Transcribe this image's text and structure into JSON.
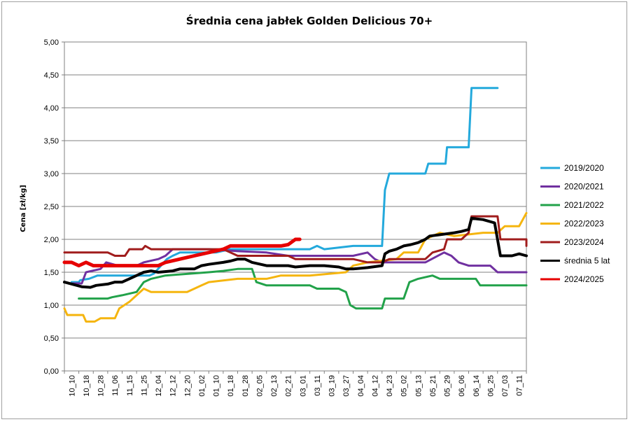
{
  "chart_data": {
    "type": "line",
    "title": "Średnia cena jabłek Golden Delicious 70+",
    "ylabel": "Cena [zł/kg]",
    "xlabel": "",
    "ylim": [
      0,
      5
    ],
    "yticks": [
      "0,00",
      "0,50",
      "1,00",
      "1,50",
      "2,00",
      "2,50",
      "3,00",
      "3,50",
      "4,00",
      "4,50",
      "5,00"
    ],
    "categories": [
      "10_10",
      "10_18",
      "10_28",
      "11_06",
      "11_15",
      "11_25",
      "12_04",
      "12_12",
      "12_20",
      "01_02",
      "01_10",
      "01_18",
      "01_28",
      "02_05",
      "02_13",
      "02_21",
      "03_01",
      "03_11",
      "03_19",
      "03_27",
      "04_04",
      "04_12",
      "04_23",
      "05_02",
      "05_13",
      "05_21",
      "05_29",
      "06_06",
      "06_14",
      "06_25",
      "07_03",
      "07_11"
    ],
    "grid": "horizontal",
    "legend_position": "right",
    "series": [
      {
        "name": "2019/2020",
        "color": "#23a9dc",
        "width": 3,
        "points": [
          [
            0.5,
            1.35
          ],
          [
            1.0,
            1.35
          ],
          [
            1.1,
            1.38
          ],
          [
            1.7,
            1.4
          ],
          [
            2.3,
            1.45
          ],
          [
            5.9,
            1.45
          ],
          [
            6.2,
            1.48
          ],
          [
            7.1,
            1.7
          ],
          [
            7.5,
            1.75
          ],
          [
            8.0,
            1.8
          ],
          [
            10.5,
            1.8
          ],
          [
            11.5,
            1.85
          ],
          [
            15.0,
            1.85
          ],
          [
            17.0,
            1.85
          ],
          [
            17.5,
            1.9
          ],
          [
            18.0,
            1.85
          ],
          [
            20.0,
            1.9
          ],
          [
            22.0,
            1.9
          ],
          [
            22.2,
            2.75
          ],
          [
            22.5,
            3.0
          ],
          [
            25.0,
            3.0
          ],
          [
            25.2,
            3.15
          ],
          [
            26.4,
            3.15
          ],
          [
            26.5,
            3.4
          ],
          [
            28.0,
            3.4
          ],
          [
            28.2,
            4.3
          ],
          [
            30.0,
            4.3
          ]
        ]
      },
      {
        "name": "2020/2021",
        "color": "#7030a0",
        "width": 3,
        "points": [
          [
            0.5,
            1.33
          ],
          [
            1.2,
            1.33
          ],
          [
            1.5,
            1.5
          ],
          [
            2.5,
            1.55
          ],
          [
            2.9,
            1.65
          ],
          [
            3.7,
            1.6
          ],
          [
            5.0,
            1.6
          ],
          [
            5.5,
            1.65
          ],
          [
            6.5,
            1.7
          ],
          [
            7.0,
            1.75
          ],
          [
            7.5,
            1.85
          ],
          [
            10.0,
            1.85
          ],
          [
            12.0,
            1.82
          ],
          [
            14.0,
            1.8
          ],
          [
            15.5,
            1.75
          ],
          [
            20.0,
            1.75
          ],
          [
            21.0,
            1.8
          ],
          [
            21.5,
            1.7
          ],
          [
            22.0,
            1.65
          ],
          [
            25.0,
            1.65
          ],
          [
            26.3,
            1.8
          ],
          [
            26.8,
            1.75
          ],
          [
            27.3,
            1.65
          ],
          [
            28.0,
            1.6
          ],
          [
            29.5,
            1.6
          ],
          [
            30.0,
            1.5
          ],
          [
            32.0,
            1.5
          ]
        ]
      },
      {
        "name": "2021/2022",
        "color": "#22a24a",
        "width": 3,
        "points": [
          [
            1.0,
            1.1
          ],
          [
            3.0,
            1.1
          ],
          [
            3.3,
            1.12
          ],
          [
            4.0,
            1.15
          ],
          [
            5.0,
            1.2
          ],
          [
            5.5,
            1.35
          ],
          [
            6.0,
            1.4
          ],
          [
            7.0,
            1.45
          ],
          [
            10.0,
            1.5
          ],
          [
            11.0,
            1.52
          ],
          [
            12.0,
            1.55
          ],
          [
            13.0,
            1.55
          ],
          [
            13.3,
            1.35
          ],
          [
            14.0,
            1.3
          ],
          [
            17.0,
            1.3
          ],
          [
            17.5,
            1.25
          ],
          [
            19.0,
            1.25
          ],
          [
            19.5,
            1.2
          ],
          [
            19.8,
            1.0
          ],
          [
            20.2,
            0.95
          ],
          [
            22.0,
            0.95
          ],
          [
            22.2,
            1.1
          ],
          [
            23.5,
            1.1
          ],
          [
            23.9,
            1.35
          ],
          [
            24.5,
            1.4
          ],
          [
            25.5,
            1.45
          ],
          [
            26.0,
            1.4
          ],
          [
            28.5,
            1.4
          ],
          [
            28.8,
            1.3
          ],
          [
            32.0,
            1.3
          ]
        ]
      },
      {
        "name": "2022/2023",
        "color": "#f5b50f",
        "width": 3,
        "points": [
          [
            0.0,
            0.95
          ],
          [
            0.2,
            0.85
          ],
          [
            1.3,
            0.85
          ],
          [
            1.5,
            0.75
          ],
          [
            2.1,
            0.75
          ],
          [
            2.5,
            0.8
          ],
          [
            3.5,
            0.8
          ],
          [
            3.8,
            0.95
          ],
          [
            4.5,
            1.05
          ],
          [
            5.0,
            1.15
          ],
          [
            5.5,
            1.25
          ],
          [
            6.0,
            1.2
          ],
          [
            8.5,
            1.2
          ],
          [
            9.5,
            1.3
          ],
          [
            10.0,
            1.35
          ],
          [
            12.0,
            1.4
          ],
          [
            14.0,
            1.4
          ],
          [
            15.0,
            1.45
          ],
          [
            17.0,
            1.45
          ],
          [
            19.5,
            1.5
          ],
          [
            20.0,
            1.6
          ],
          [
            21.0,
            1.65
          ],
          [
            23.0,
            1.7
          ],
          [
            23.5,
            1.8
          ],
          [
            24.5,
            1.8
          ],
          [
            25.0,
            2.0
          ],
          [
            26.0,
            2.1
          ],
          [
            27.0,
            2.05
          ],
          [
            29.0,
            2.1
          ],
          [
            30.0,
            2.1
          ],
          [
            30.5,
            2.2
          ],
          [
            31.5,
            2.2
          ],
          [
            32.0,
            2.4
          ]
        ]
      },
      {
        "name": "2023/2024",
        "color": "#a01c1c",
        "width": 3,
        "points": [
          [
            0.0,
            1.8
          ],
          [
            3.0,
            1.8
          ],
          [
            3.5,
            1.75
          ],
          [
            4.2,
            1.75
          ],
          [
            4.5,
            1.85
          ],
          [
            5.4,
            1.85
          ],
          [
            5.6,
            1.9
          ],
          [
            6.0,
            1.85
          ],
          [
            11.0,
            1.85
          ],
          [
            11.5,
            1.8
          ],
          [
            12.0,
            1.75
          ],
          [
            15.5,
            1.75
          ],
          [
            16.0,
            1.7
          ],
          [
            20.0,
            1.7
          ],
          [
            21.0,
            1.65
          ],
          [
            22.0,
            1.65
          ],
          [
            22.5,
            1.7
          ],
          [
            25.0,
            1.7
          ],
          [
            25.5,
            1.8
          ],
          [
            26.3,
            1.85
          ],
          [
            26.5,
            2.0
          ],
          [
            27.0,
            2.0
          ],
          [
            27.5,
            2.0
          ],
          [
            28.0,
            2.1
          ],
          [
            28.2,
            2.35
          ],
          [
            30.0,
            2.35
          ],
          [
            30.2,
            2.0
          ],
          [
            31.0,
            2.0
          ],
          [
            32.0,
            2.0
          ],
          [
            32.0,
            1.9
          ]
        ]
      },
      {
        "name": "średnia 5 lat",
        "color": "#000000",
        "width": 4,
        "points": [
          [
            0.0,
            1.35
          ],
          [
            1.2,
            1.28
          ],
          [
            1.8,
            1.27
          ],
          [
            2.2,
            1.3
          ],
          [
            3.0,
            1.32
          ],
          [
            3.5,
            1.35
          ],
          [
            4.0,
            1.35
          ],
          [
            4.5,
            1.4
          ],
          [
            5.0,
            1.45
          ],
          [
            5.5,
            1.5
          ],
          [
            6.0,
            1.52
          ],
          [
            6.5,
            1.5
          ],
          [
            7.5,
            1.52
          ],
          [
            8.0,
            1.55
          ],
          [
            9.0,
            1.55
          ],
          [
            9.5,
            1.6
          ],
          [
            10.0,
            1.62
          ],
          [
            11.0,
            1.65
          ],
          [
            11.5,
            1.67
          ],
          [
            12.0,
            1.7
          ],
          [
            12.5,
            1.7
          ],
          [
            13.0,
            1.65
          ],
          [
            14.0,
            1.6
          ],
          [
            15.5,
            1.6
          ],
          [
            16.0,
            1.58
          ],
          [
            17.0,
            1.6
          ],
          [
            18.0,
            1.6
          ],
          [
            19.0,
            1.58
          ],
          [
            19.5,
            1.55
          ],
          [
            20.0,
            1.55
          ],
          [
            21.0,
            1.57
          ],
          [
            22.0,
            1.6
          ],
          [
            22.2,
            1.78
          ],
          [
            22.5,
            1.82
          ],
          [
            23.0,
            1.85
          ],
          [
            23.5,
            1.9
          ],
          [
            24.0,
            1.92
          ],
          [
            24.5,
            1.95
          ],
          [
            25.0,
            2.0
          ],
          [
            25.3,
            2.05
          ],
          [
            26.0,
            2.07
          ],
          [
            27.0,
            2.1
          ],
          [
            27.5,
            2.12
          ],
          [
            28.0,
            2.15
          ],
          [
            28.2,
            2.32
          ],
          [
            29.0,
            2.3
          ],
          [
            29.8,
            2.25
          ],
          [
            30.2,
            1.75
          ],
          [
            30.5,
            1.75
          ],
          [
            31.0,
            1.75
          ],
          [
            31.5,
            1.78
          ],
          [
            32.0,
            1.75
          ]
        ]
      },
      {
        "name": "2024/2025",
        "color": "#e60000",
        "width": 5,
        "points": [
          [
            0.0,
            1.65
          ],
          [
            0.5,
            1.65
          ],
          [
            1.0,
            1.6
          ],
          [
            1.5,
            1.65
          ],
          [
            2.0,
            1.6
          ],
          [
            3.0,
            1.6
          ],
          [
            6.5,
            1.6
          ],
          [
            7.0,
            1.65
          ],
          [
            8.0,
            1.7
          ],
          [
            9.0,
            1.75
          ],
          [
            10.0,
            1.8
          ],
          [
            11.0,
            1.85
          ],
          [
            11.5,
            1.9
          ],
          [
            15.0,
            1.9
          ],
          [
            15.5,
            1.92
          ],
          [
            16.0,
            2.0
          ],
          [
            16.3,
            2.0
          ]
        ]
      }
    ]
  }
}
